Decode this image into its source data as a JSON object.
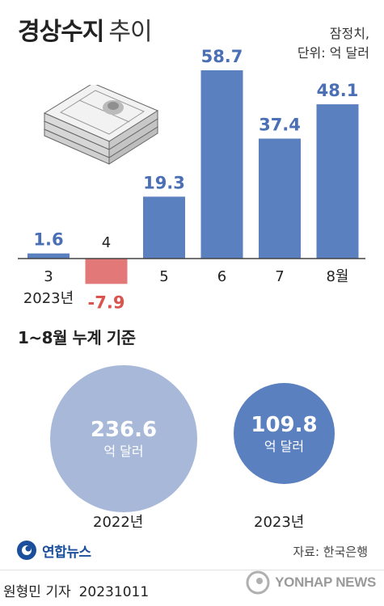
{
  "header": {
    "title": "경상수지",
    "subtitle": "추이",
    "note_line1": "잠정치,",
    "note_line2": "단위: 억 달러"
  },
  "chart_data": {
    "type": "bar",
    "categories": [
      "3",
      "4",
      "5",
      "6",
      "7",
      "8월"
    ],
    "year_label": "2023년",
    "values": [
      1.6,
      -7.9,
      19.3,
      58.7,
      37.4,
      48.1
    ],
    "value_labels": [
      "1.6",
      "-7.9",
      "19.3",
      "58.7",
      "37.4",
      "48.1"
    ],
    "colors": {
      "positive": "#5b80c0",
      "negative": "#e27877",
      "positive_label": "#4a6fb5",
      "negative_label": "#d9534f"
    },
    "ylim": [
      -7.9,
      58.7
    ]
  },
  "cumulative": {
    "title": "1~8월 누계 기준",
    "items": [
      {
        "year": "2022년",
        "amount": "236.6",
        "unit": "억 달러",
        "color": "#a7b8d8"
      },
      {
        "year": "2023년",
        "amount": "109.8",
        "unit": "억 달러",
        "color": "#5b80c0"
      }
    ]
  },
  "footer": {
    "source": "자료: 한국은행",
    "logo_text": "연합뉴스",
    "reporter": "원형민 기자",
    "date": "20231011",
    "watermark": "YONHAP NEWS"
  }
}
